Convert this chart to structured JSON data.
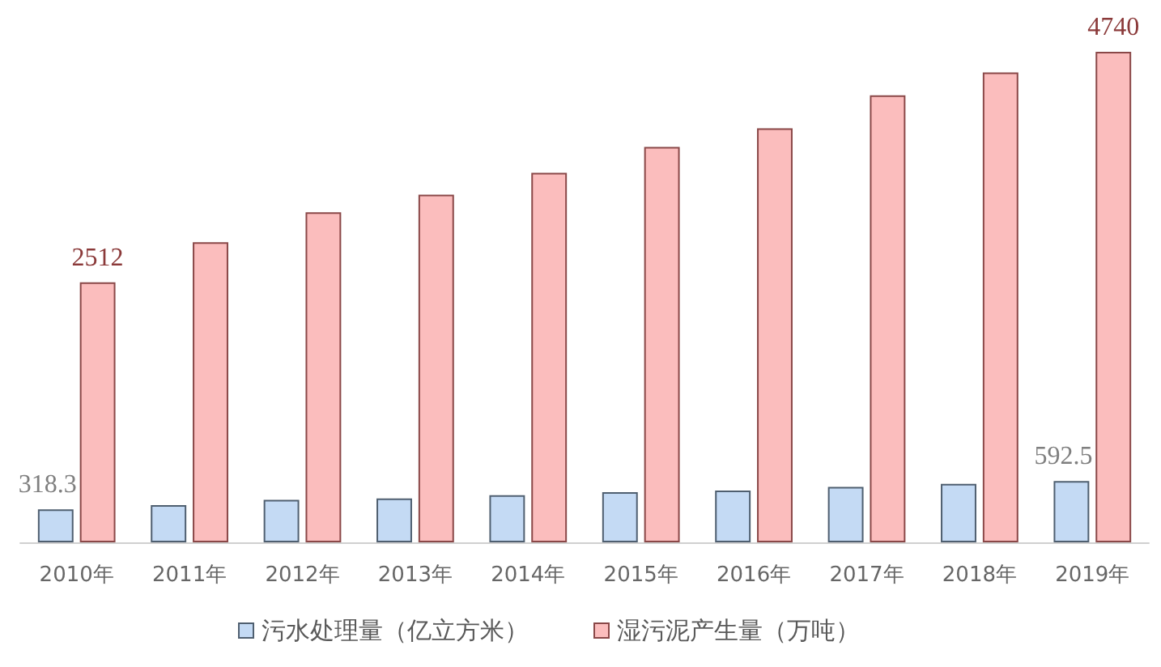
{
  "chart_data": {
    "type": "bar",
    "categories": [
      "2010年",
      "2011年",
      "2012年",
      "2013年",
      "2014年",
      "2015年",
      "2016年",
      "2017年",
      "2018年",
      "2019年"
    ],
    "series": [
      {
        "name": "污水处理量（亿立方米）",
        "color": "#c4daf4",
        "values": [
          318.3,
          360,
          410,
          425,
          455,
          485,
          500,
          535,
          565,
          592.5
        ],
        "value_labels": [
          "318.3",
          null,
          null,
          null,
          null,
          null,
          null,
          null,
          null,
          "592.5"
        ]
      },
      {
        "name": "湿污泥产生量（万吨）",
        "color": "#fbbdbd",
        "values": [
          2512,
          2900,
          3190,
          3360,
          3570,
          3820,
          4000,
          4320,
          4540,
          4740
        ],
        "value_labels": [
          "2512",
          null,
          null,
          null,
          null,
          null,
          null,
          null,
          null,
          "4740"
        ]
      }
    ],
    "legend": "bottom"
  }
}
